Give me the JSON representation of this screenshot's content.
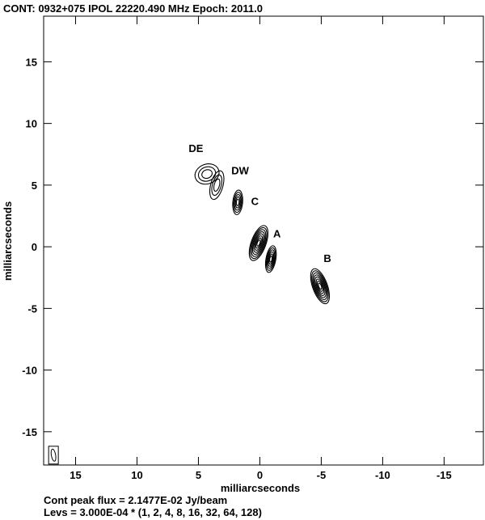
{
  "chart_data": {
    "type": "contour",
    "title": "CONT: 0932+075  IPOL  22220.490 MHz   Epoch: 2011.0",
    "xlabel": "milliarcseconds",
    "ylabel": "milliarcseconds",
    "xlim": [
      17.6,
      -18.2
    ],
    "ylim": [
      -17.7,
      18.7
    ],
    "xticks": [
      15,
      10,
      5,
      0,
      -5,
      -10,
      -15
    ],
    "yticks": [
      15,
      10,
      5,
      0,
      -5,
      -10,
      -15
    ],
    "footer_flux": "Cont peak flux =  2.1477E-02 Jy/beam",
    "footer_levels": "Levs = 3.000E-04 * (1, 2, 4, 8, 16, 32, 64, 128)",
    "base_level_jy": 0.0003,
    "levels": [
      1,
      2,
      4,
      8,
      16,
      32,
      64,
      128
    ],
    "components": [
      {
        "label": "DE",
        "x": 4.3,
        "y": 5.9,
        "rx": 1.0,
        "ry": 0.8,
        "pa": -20,
        "nlev": 3,
        "label_x": 5.2,
        "label_y": 8.0
      },
      {
        "label": "DW",
        "x": 3.5,
        "y": 5.0,
        "rx": 0.5,
        "ry": 1.2,
        "pa": 15,
        "nlev": 3,
        "label_x": 1.6,
        "label_y": 6.2
      },
      {
        "label": "C",
        "x": 1.8,
        "y": 3.6,
        "rx": 0.4,
        "ry": 1.0,
        "pa": 5,
        "nlev": 5,
        "label_x": 0.4,
        "label_y": 3.7
      },
      {
        "label": "A",
        "x": 0.1,
        "y": 0.3,
        "rx": 0.6,
        "ry": 1.5,
        "pa": 20,
        "nlev": 8,
        "label_x": -1.4,
        "label_y": 1.1
      },
      {
        "label": "",
        "x": -0.9,
        "y": -1.0,
        "rx": 0.4,
        "ry": 1.1,
        "pa": 10,
        "nlev": 6
      },
      {
        "label": "B",
        "x": -4.9,
        "y": -3.2,
        "rx": 0.6,
        "ry": 1.5,
        "pa": -20,
        "nlev": 8,
        "label_x": -5.5,
        "label_y": -0.9
      }
    ],
    "beam": {
      "x": 16.8,
      "y": -16.9,
      "major": 1.0,
      "minor": 0.35,
      "pa": -10
    }
  }
}
